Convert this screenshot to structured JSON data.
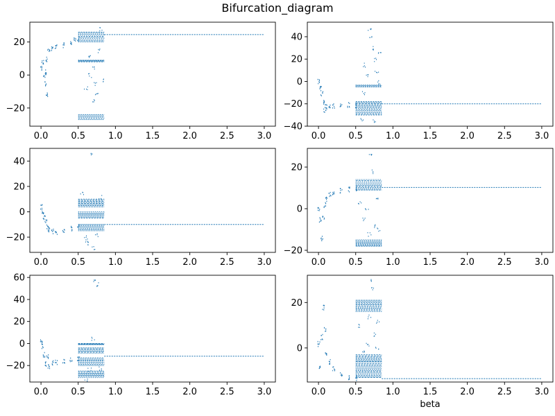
{
  "figure": {
    "title": "Bifurcation_diagram",
    "series_color": "#1f77b4"
  },
  "chart_data": [
    {
      "type": "scatter",
      "xlabel": "",
      "ylabel": "",
      "xlim": [
        -0.15,
        3.15
      ],
      "ylim": [
        -31,
        32
      ],
      "xticks": [
        0.0,
        0.5,
        1.0,
        1.5,
        2.0,
        2.5,
        3.0
      ],
      "xtick_labels": [
        "0.0",
        "0.5",
        "1.0",
        "1.5",
        "2.0",
        "2.5",
        "3.0"
      ],
      "yticks": [
        -20,
        0,
        20
      ],
      "ytick_labels": [
        "−20",
        "0",
        "20"
      ],
      "grid": false,
      "steady": {
        "x_start": 0.85,
        "x_end": 3.0,
        "y": 24.5
      },
      "transient": [
        [
          0.0,
          4
        ],
        [
          0.02,
          8
        ],
        [
          0.04,
          0
        ],
        [
          0.05,
          -5
        ],
        [
          0.06,
          2
        ],
        [
          0.07,
          10
        ],
        [
          0.08,
          -12
        ],
        [
          0.1,
          15
        ],
        [
          0.15,
          16
        ],
        [
          0.2,
          17
        ],
        [
          0.3,
          18.5
        ],
        [
          0.4,
          20
        ],
        [
          0.45,
          21.5
        ],
        [
          0.5,
          22.5
        ]
      ],
      "chaotic_bands": [
        {
          "x": [
            0.5,
            0.85
          ],
          "y": [
            20,
            26
          ]
        },
        {
          "x": [
            0.5,
            0.85
          ],
          "y": [
            8,
            9
          ]
        },
        {
          "x": [
            0.5,
            0.85
          ],
          "y": [
            -27,
            -24
          ]
        }
      ],
      "scatter": [
        [
          0.6,
          -8
        ],
        [
          0.65,
          0
        ],
        [
          0.7,
          4
        ],
        [
          0.72,
          -5
        ],
        [
          0.75,
          -12
        ],
        [
          0.8,
          28
        ],
        [
          0.82,
          -3
        ],
        [
          0.66,
          12
        ],
        [
          0.78,
          15
        ],
        [
          0.7,
          -15
        ]
      ]
    },
    {
      "type": "scatter",
      "xlabel": "",
      "ylabel": "",
      "xlim": [
        -0.15,
        3.15
      ],
      "ylim": [
        -40,
        53
      ],
      "xticks": [
        0.0,
        0.5,
        1.0,
        1.5,
        2.0,
        2.5,
        3.0
      ],
      "xtick_labels": [
        "0.0",
        "0.5",
        "1.0",
        "1.5",
        "2.0",
        "2.5",
        "3.0"
      ],
      "yticks": [
        -40,
        -20,
        0,
        20,
        40
      ],
      "ytick_labels": [
        "−40",
        "−20",
        "0",
        "20",
        "40"
      ],
      "grid": false,
      "steady": {
        "x_start": 0.85,
        "x_end": 3.0,
        "y": -20
      },
      "transient": [
        [
          0.0,
          0
        ],
        [
          0.02,
          -5
        ],
        [
          0.04,
          -10
        ],
        [
          0.06,
          -18
        ],
        [
          0.08,
          -25
        ],
        [
          0.1,
          -22
        ],
        [
          0.15,
          -21
        ],
        [
          0.2,
          -21.5
        ],
        [
          0.3,
          -21
        ],
        [
          0.4,
          -20.5
        ],
        [
          0.5,
          -21
        ]
      ],
      "chaotic_bands": [
        {
          "x": [
            0.5,
            0.85
          ],
          "y": [
            -30,
            -18
          ]
        },
        {
          "x": [
            0.5,
            0.85
          ],
          "y": [
            -5,
            -3
          ]
        }
      ],
      "scatter": [
        [
          0.68,
          48
        ],
        [
          0.7,
          40
        ],
        [
          0.72,
          30
        ],
        [
          0.75,
          20
        ],
        [
          0.78,
          10
        ],
        [
          0.8,
          0
        ],
        [
          0.62,
          15
        ],
        [
          0.66,
          5
        ],
        [
          0.74,
          -35
        ],
        [
          0.58,
          -33
        ],
        [
          0.82,
          25
        ],
        [
          0.6,
          -10
        ]
      ]
    },
    {
      "type": "scatter",
      "xlabel": "",
      "ylabel": "",
      "xlim": [
        -0.15,
        3.15
      ],
      "ylim": [
        -32,
        50
      ],
      "xticks": [
        0.0,
        0.5,
        1.0,
        1.5,
        2.0,
        2.5,
        3.0
      ],
      "xtick_labels": [
        "0.0",
        "0.5",
        "1.0",
        "1.5",
        "2.0",
        "2.5",
        "3.0"
      ],
      "yticks": [
        -20,
        0,
        20,
        40
      ],
      "ytick_labels": [
        "−20",
        "0",
        "20",
        "40"
      ],
      "grid": false,
      "steady": {
        "x_start": 0.85,
        "x_end": 3.0,
        "y": -10
      },
      "transient": [
        [
          0.0,
          4
        ],
        [
          0.02,
          0
        ],
        [
          0.04,
          -4
        ],
        [
          0.06,
          -8
        ],
        [
          0.08,
          -12
        ],
        [
          0.1,
          -14
        ],
        [
          0.15,
          -15
        ],
        [
          0.2,
          -15.5
        ],
        [
          0.3,
          -15
        ],
        [
          0.4,
          -13
        ],
        [
          0.5,
          -10
        ]
      ],
      "chaotic_bands": [
        {
          "x": [
            0.5,
            0.85
          ],
          "y": [
            4,
            10
          ]
        },
        {
          "x": [
            0.5,
            0.85
          ],
          "y": [
            -5,
            0
          ]
        },
        {
          "x": [
            0.5,
            0.85
          ],
          "y": [
            -15,
            -10
          ]
        }
      ],
      "scatter": [
        [
          0.68,
          46
        ],
        [
          0.6,
          -20
        ],
        [
          0.65,
          -25
        ],
        [
          0.7,
          -28
        ],
        [
          0.75,
          -18
        ],
        [
          0.55,
          15
        ],
        [
          0.8,
          12
        ],
        [
          0.62,
          -22
        ]
      ]
    },
    {
      "type": "scatter",
      "xlabel": "",
      "ylabel": "",
      "xlim": [
        -0.15,
        3.15
      ],
      "ylim": [
        -21,
        29
      ],
      "xticks": [
        0.0,
        0.5,
        1.0,
        1.5,
        2.0,
        2.5,
        3.0
      ],
      "xtick_labels": [
        "0.0",
        "0.5",
        "1.0",
        "1.5",
        "2.0",
        "2.5",
        "3.0"
      ],
      "yticks": [
        -20,
        0,
        20
      ],
      "ytick_labels": [
        "−20",
        "0",
        "20"
      ],
      "grid": false,
      "steady": {
        "x_start": 0.85,
        "x_end": 3.0,
        "y": 10.2
      },
      "transient": [
        [
          0.0,
          0
        ],
        [
          0.02,
          -5
        ],
        [
          0.04,
          -14
        ],
        [
          0.06,
          -4
        ],
        [
          0.08,
          2
        ],
        [
          0.1,
          5
        ],
        [
          0.15,
          7
        ],
        [
          0.2,
          8
        ],
        [
          0.3,
          9
        ],
        [
          0.4,
          9.5
        ],
        [
          0.5,
          10
        ]
      ],
      "chaotic_bands": [
        {
          "x": [
            0.5,
            0.85
          ],
          "y": [
            9,
            14
          ]
        },
        {
          "x": [
            0.5,
            0.85
          ],
          "y": [
            -18,
            -15
          ]
        }
      ],
      "scatter": [
        [
          0.7,
          26
        ],
        [
          0.72,
          18
        ],
        [
          0.65,
          0
        ],
        [
          0.6,
          -5
        ],
        [
          0.75,
          -8
        ],
        [
          0.8,
          -10
        ],
        [
          0.78,
          5
        ],
        [
          0.55,
          3
        ],
        [
          0.68,
          -12
        ]
      ]
    },
    {
      "type": "scatter",
      "xlabel": "",
      "ylabel": "",
      "xlim": [
        -0.15,
        3.15
      ],
      "ylim": [
        -35,
        62
      ],
      "xticks": [
        0.0,
        0.5,
        1.0,
        1.5,
        2.0,
        2.5,
        3.0
      ],
      "xtick_labels": [
        "0.0",
        "0.5",
        "1.0",
        "1.5",
        "2.0",
        "2.5",
        "3.0"
      ],
      "yticks": [
        -20,
        0,
        20,
        40,
        60
      ],
      "ytick_labels": [
        "−20",
        "0",
        "20",
        "40",
        "60"
      ],
      "grid": false,
      "steady": {
        "x_start": 0.85,
        "x_end": 3.0,
        "y": -11.5
      },
      "transient": [
        [
          0.0,
          2
        ],
        [
          0.02,
          -2
        ],
        [
          0.04,
          -10
        ],
        [
          0.06,
          -18
        ],
        [
          0.08,
          -12
        ],
        [
          0.1,
          -20
        ],
        [
          0.15,
          -17
        ],
        [
          0.2,
          -16.5
        ],
        [
          0.3,
          -16
        ],
        [
          0.4,
          -15
        ],
        [
          0.5,
          -13
        ]
      ],
      "chaotic_bands": [
        {
          "x": [
            0.5,
            0.85
          ],
          "y": [
            -9,
            -4
          ]
        },
        {
          "x": [
            0.5,
            0.85
          ],
          "y": [
            -20,
            -13
          ]
        },
        {
          "x": [
            0.5,
            0.85
          ],
          "y": [
            -31,
            -25
          ]
        },
        {
          "x": [
            0.5,
            0.85
          ],
          "y": [
            -1,
            0
          ]
        }
      ],
      "scatter": [
        [
          0.72,
          57
        ],
        [
          0.75,
          54
        ],
        [
          0.6,
          -33
        ],
        [
          0.7,
          5
        ],
        [
          0.65,
          -23
        ],
        [
          0.8,
          -22
        ]
      ]
    },
    {
      "type": "scatter",
      "xlabel": "beta",
      "ylabel": "",
      "xlim": [
        -0.15,
        3.15
      ],
      "ylim": [
        -15,
        32
      ],
      "xticks": [
        0.0,
        0.5,
        1.0,
        1.5,
        2.0,
        2.5,
        3.0
      ],
      "xtick_labels": [
        "0.0",
        "0.5",
        "1.0",
        "1.5",
        "2.0",
        "2.5",
        "3.0"
      ],
      "yticks": [
        0,
        20
      ],
      "ytick_labels": [
        "0",
        "20"
      ],
      "grid": false,
      "steady": {
        "x_start": 0.85,
        "x_end": 3.0,
        "y": -13.5
      },
      "transient": [
        [
          0.0,
          2
        ],
        [
          0.02,
          -8
        ],
        [
          0.04,
          5
        ],
        [
          0.06,
          18
        ],
        [
          0.08,
          8
        ],
        [
          0.1,
          -2
        ],
        [
          0.15,
          -6
        ],
        [
          0.2,
          -9
        ],
        [
          0.3,
          -11
        ],
        [
          0.4,
          -12.5
        ],
        [
          0.5,
          -13
        ]
      ],
      "chaotic_bands": [
        {
          "x": [
            0.5,
            0.85
          ],
          "y": [
            16,
            21
          ]
        },
        {
          "x": [
            0.5,
            0.85
          ],
          "y": [
            -13,
            -3
          ]
        }
      ],
      "scatter": [
        [
          0.7,
          30
        ],
        [
          0.72,
          26
        ],
        [
          0.8,
          12
        ],
        [
          0.75,
          6
        ],
        [
          0.65,
          2
        ],
        [
          0.6,
          -1
        ],
        [
          0.78,
          0
        ],
        [
          0.55,
          10
        ],
        [
          0.68,
          14
        ]
      ]
    }
  ]
}
